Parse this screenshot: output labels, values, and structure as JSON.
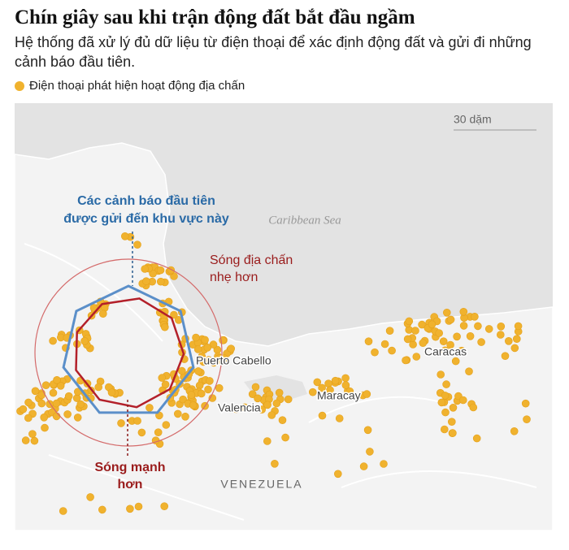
{
  "header": {
    "title": "Chín giây sau khi trận động đất bắt đầu ngầm",
    "subtitle": "Hệ thống đã xử lý đủ dữ liệu từ điện thoại để xác định động đất và gửi đi những cảnh báo đầu tiên."
  },
  "legend": {
    "label": "Điện thoại phát hiện hoạt động địa chấn"
  },
  "map": {
    "scale_label": "30 dặm",
    "sea_label": "Caribbean Sea",
    "country": "VENEZUELA",
    "annotations": [
      {
        "lines": [
          "Các cảnh báo đầu tiên",
          "được gửi đến khu vực này"
        ]
      },
      {
        "lines": [
          "Sóng địa chấn",
          "nhẹ hơn"
        ]
      },
      {
        "lines": [
          "Sóng mạnh",
          "hơn"
        ]
      }
    ],
    "places": [
      "Puerto Cabello",
      "Valencia",
      "Maracay",
      "Caracas"
    ]
  }
}
